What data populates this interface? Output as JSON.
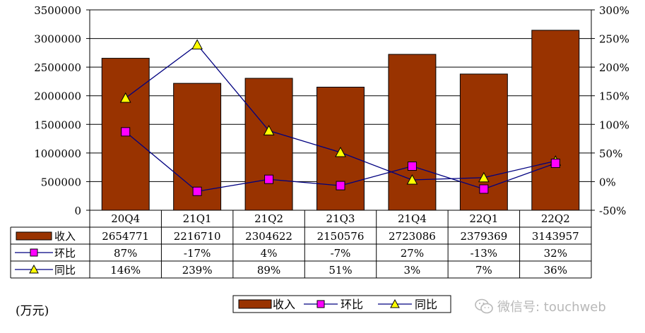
{
  "chart_data": {
    "type": "bar",
    "categories": [
      "20Q4",
      "21Q1",
      "21Q2",
      "21Q3",
      "21Q4",
      "22Q1",
      "22Q2"
    ],
    "series": [
      {
        "name": "收入",
        "type": "bar",
        "axis": "left",
        "color": "#993300",
        "values": [
          2654771,
          2216710,
          2304622,
          2150576,
          2723086,
          2379369,
          3143957
        ],
        "labels": [
          "2654771",
          "2216710",
          "2304622",
          "2150576",
          "2723086",
          "2379369",
          "3143957"
        ]
      },
      {
        "name": "环比",
        "type": "line",
        "axis": "right",
        "color": "#ff00ff",
        "marker": "square",
        "values": [
          87,
          -17,
          4,
          -7,
          27,
          -13,
          32
        ],
        "labels": [
          "87%",
          "-17%",
          "4%",
          "-7%",
          "27%",
          "-13%",
          "32%"
        ]
      },
      {
        "name": "同比",
        "type": "line",
        "axis": "right",
        "color": "#ffff00",
        "marker": "triangle",
        "values": [
          146,
          239,
          89,
          51,
          3,
          7,
          36
        ],
        "labels": [
          "146%",
          "239%",
          "89%",
          "51%",
          "3%",
          "7%",
          "36%"
        ]
      }
    ],
    "ylim": [
      0,
      3500000
    ],
    "y_ticks": [
      "0",
      "500000",
      "1000000",
      "1500000",
      "2000000",
      "2500000",
      "3000000",
      "3500000"
    ],
    "y2lim": [
      -50,
      300
    ],
    "y2_ticks": [
      "-50%",
      "0%",
      "50%",
      "100%",
      "150%",
      "200%",
      "250%",
      "300%"
    ],
    "unit_label": "(万元)",
    "grid": true,
    "legend_position": "bottom-center",
    "data_table": true
  },
  "watermark": {
    "text": "微信号: touchweb",
    "icon": "wechat-icon"
  }
}
